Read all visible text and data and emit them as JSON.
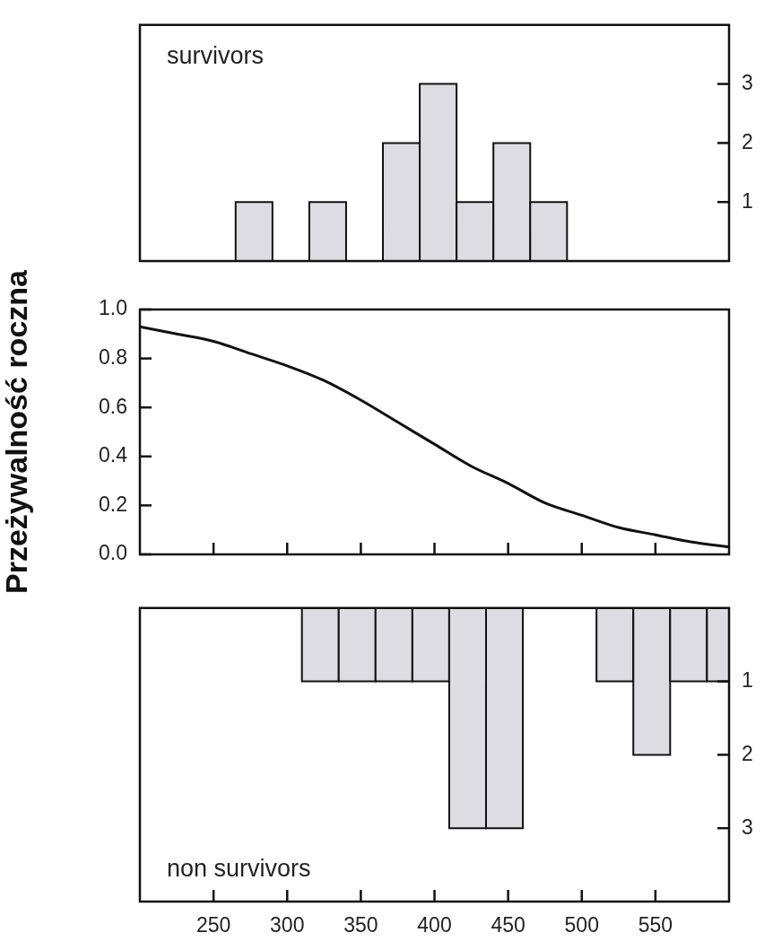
{
  "chart_data": [
    {
      "type": "histogram",
      "bins": [
        265,
        290,
        315,
        340,
        365,
        390,
        415,
        440,
        465,
        490
      ],
      "values": [
        1,
        0,
        1,
        0,
        2,
        3,
        1,
        2,
        1
      ],
      "color": "#dcdce2",
      "xlim": [
        200,
        600
      ],
      "ylim": [
        0,
        4
      ],
      "yticks": [
        1,
        2,
        3
      ],
      "tick_labels": "y",
      "grid": false,
      "legend": false,
      "annotations": [
        "survivors"
      ]
    },
    {
      "type": "line",
      "series": [
        {
          "color": "#111111",
          "x": [
            200,
            225,
            250,
            275,
            300,
            325,
            350,
            375,
            400,
            425,
            450,
            475,
            500,
            525,
            550,
            575,
            600
          ],
          "values": [
            0.93,
            0.9,
            0.87,
            0.82,
            0.77,
            0.71,
            0.63,
            0.54,
            0.45,
            0.36,
            0.29,
            0.21,
            0.16,
            0.11,
            0.08,
            0.05,
            0.03
          ]
        }
      ],
      "xlim": [
        200,
        600
      ],
      "ylim": [
        0,
        1
      ],
      "xticks": [
        250,
        300,
        350,
        400,
        450,
        500,
        550
      ],
      "yticks": [
        {
          "value": 0,
          "label": "0.0"
        },
        0.2,
        0.4,
        0.6,
        0.8,
        {
          "value": 1,
          "label": "1.0"
        }
      ],
      "ylabel": "Przeżywalność roczna",
      "tick_labels": "y",
      "marker": "none",
      "line_style": "solid",
      "grid": false,
      "legend": false
    },
    {
      "type": "histogram",
      "bins": [
        310,
        335,
        360,
        385,
        410,
        435,
        460,
        510,
        535,
        560,
        585,
        600
      ],
      "values": [
        1,
        1,
        1,
        1,
        3,
        3,
        0,
        1,
        2,
        1,
        1
      ],
      "color": "#dcdce2",
      "xlim": [
        200,
        600
      ],
      "ylim": [
        4,
        0
      ],
      "yticks": [
        1,
        2,
        3
      ],
      "xticks": [
        250,
        300,
        350,
        400,
        450,
        500,
        550
      ],
      "grid": false,
      "legend": false,
      "annotations": [
        "non survivors"
      ]
    }
  ]
}
